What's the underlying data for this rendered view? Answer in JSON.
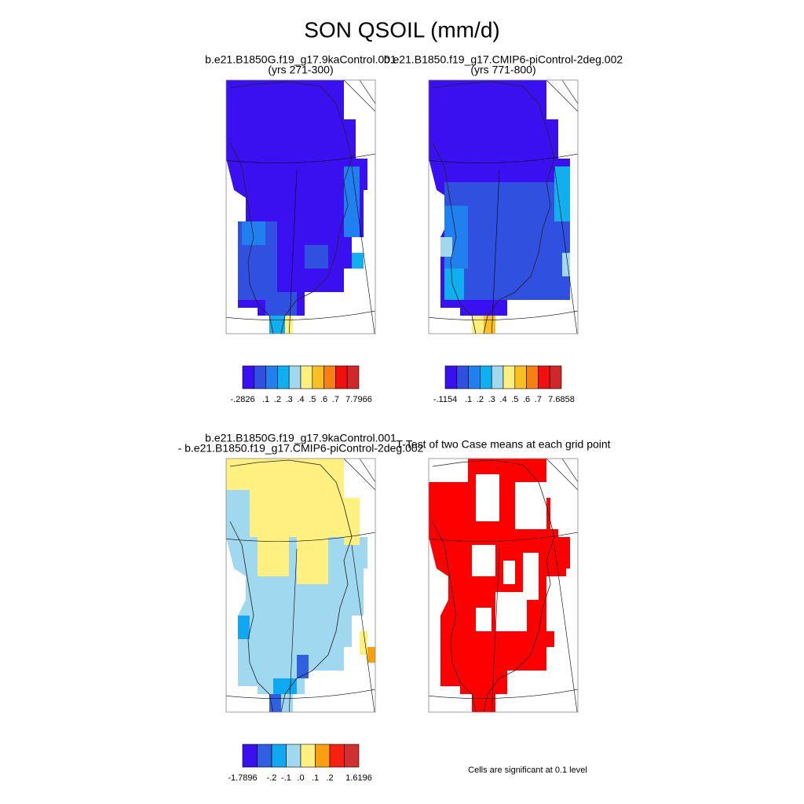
{
  "title": "SON QSOIL (mm/d)",
  "panels": [
    {
      "title": [
        "b.e21.B1850G.f19_g17.9kaControl.001",
        "(yrs 271-300)"
      ],
      "colorbar": {
        "labels": [
          "-.2826",
          ".1",
          ".2",
          ".3",
          ".4",
          ".5",
          ".6",
          ".7",
          "7.7966"
        ],
        "colors": [
          "#3a10f0",
          "#3050e0",
          "#2080f0",
          "#10b0f0",
          "#a0d8f0",
          "#fff080",
          "#f8c020",
          "#f88010",
          "#f01010",
          "#d02828"
        ]
      }
    },
    {
      "title": [
        "b.e21.B1850.f19_g17.CMIP6-piControl-2deg.002",
        "(yrs 771-800)"
      ],
      "colorbar": {
        "labels": [
          "-.1154",
          ".1",
          ".2",
          ".3",
          ".4",
          ".5",
          ".6",
          ".7",
          "7.6858"
        ],
        "colors": [
          "#3a10f0",
          "#3050e0",
          "#2080f0",
          "#10b0f0",
          "#a0d8f0",
          "#fff080",
          "#f8c020",
          "#f88010",
          "#f01010",
          "#d02828"
        ]
      }
    },
    {
      "title": [
        "b.e21.B1850G.f19_g17.9kaControl.001",
        "- b.e21.B1850.f19_g17.CMIP6-piControl-2deg.002"
      ],
      "colorbar": {
        "labels": [
          "-1.7896",
          "-.2",
          "-.1",
          ".0",
          ".1",
          ".2",
          "1.6196"
        ],
        "colors": [
          "#3a10f0",
          "#3060e0",
          "#10a8f0",
          "#a0d8f0",
          "#fff080",
          "#f8a010",
          "#f82010",
          "#d03030"
        ]
      }
    },
    {
      "title": [
        "T-Test of two Case means at each grid point"
      ],
      "note": "Cells are significant at 0.1 level"
    }
  ]
}
